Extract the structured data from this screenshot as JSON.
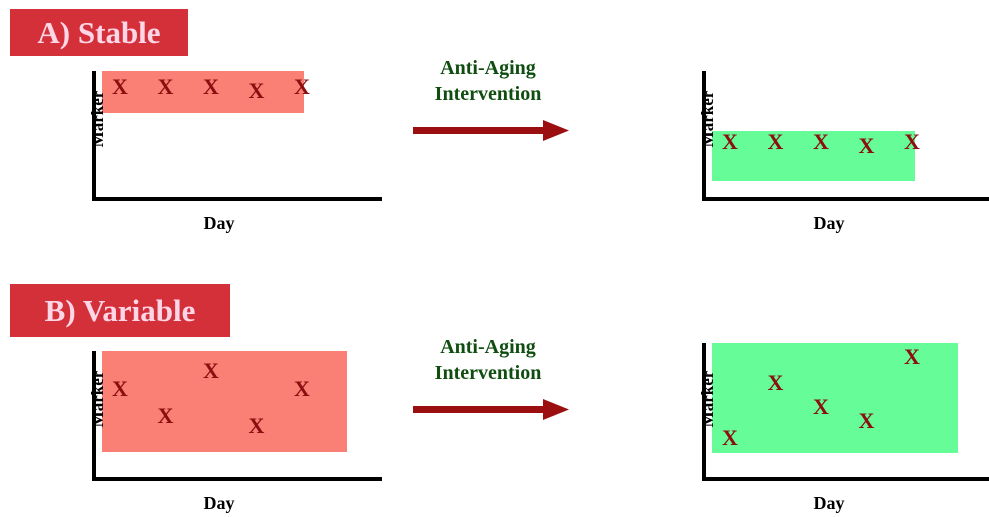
{
  "sections": [
    {
      "title": "A) Stable",
      "intervention_label_line1": "Anti-Aging",
      "intervention_label_line2": "Intervention",
      "before": {
        "ylabel": "Marker",
        "xlabel": "Day",
        "box_color": "#fa7f74",
        "mark_symbol": "X",
        "mark_color": "#8b0e10",
        "marks": [
          {
            "x": 1,
            "y": 0.92
          },
          {
            "x": 2,
            "y": 0.92
          },
          {
            "x": 3,
            "y": 0.92
          },
          {
            "x": 4,
            "y": 0.88
          },
          {
            "x": 5,
            "y": 0.92
          }
        ]
      },
      "after": {
        "ylabel": "Marker",
        "xlabel": "Day",
        "box_color": "#66fd98",
        "mark_symbol": "X",
        "mark_color": "#8b0e10",
        "marks": [
          {
            "x": 1,
            "y": 0.38
          },
          {
            "x": 2,
            "y": 0.38
          },
          {
            "x": 3,
            "y": 0.38
          },
          {
            "x": 4,
            "y": 0.34
          },
          {
            "x": 5,
            "y": 0.38
          }
        ]
      }
    },
    {
      "title": "B) Variable",
      "intervention_label_line1": "Anti-Aging",
      "intervention_label_line2": "Intervention",
      "before": {
        "ylabel": "Marker",
        "xlabel": "Day",
        "box_color": "#fa7f74",
        "mark_symbol": "X",
        "mark_color": "#8b0e10",
        "marks": [
          {
            "x": 1,
            "y": 0.75
          },
          {
            "x": 2,
            "y": 0.45
          },
          {
            "x": 3,
            "y": 0.95
          },
          {
            "x": 4,
            "y": 0.33
          },
          {
            "x": 5,
            "y": 0.75
          }
        ]
      },
      "after": {
        "ylabel": "Marker",
        "xlabel": "Day",
        "box_color": "#66fd98",
        "mark_symbol": "X",
        "mark_color": "#8b0e10",
        "marks": [
          {
            "x": 1,
            "y": 0.3
          },
          {
            "x": 2,
            "y": 0.78
          },
          {
            "x": 3,
            "y": 0.57
          },
          {
            "x": 4,
            "y": 0.45
          },
          {
            "x": 5,
            "y": 1.0
          }
        ]
      }
    }
  ],
  "colors": {
    "title_bg": "#d4303a",
    "title_text": "#ffd6e6",
    "arrow": "#9b0f10",
    "intervention_text": "#0f4d10"
  }
}
